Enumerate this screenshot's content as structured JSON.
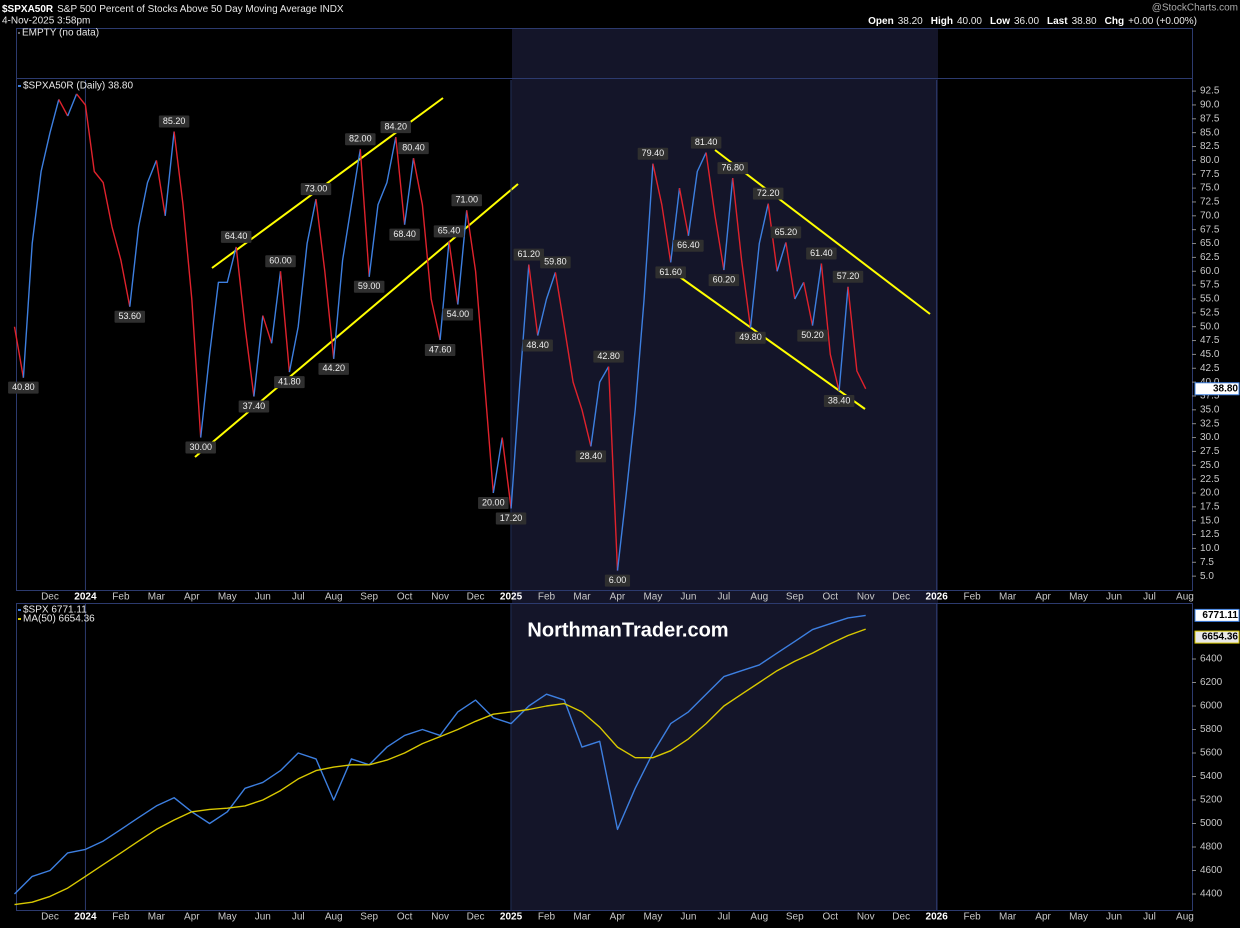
{
  "header": {
    "symbol": "$SPXA50R",
    "description": "S&P 500 Percent of Stocks Above 50 Day Moving Average INDX",
    "timestamp": "4-Nov-2025 3:58pm",
    "credit": "@StockCharts.com",
    "quote": [
      {
        "label": "Open",
        "value": "38.20"
      },
      {
        "label": "High",
        "value": "40.00"
      },
      {
        "label": "Low",
        "value": "36.00"
      },
      {
        "label": "Last",
        "value": "38.80"
      },
      {
        "label": "Chg",
        "value": "+0.00 (+0.00%)"
      }
    ],
    "empty_panel": "EMPTY (no data)",
    "watermark": "NorthmanTrader.com"
  },
  "chart_data": [
    {
      "type": "line",
      "ylim": [
        2.5,
        94.5
      ],
      "yticks": [
        92.5,
        {
          "value": 90,
          "label": "90.0"
        },
        87.5,
        {
          "value": 85,
          "label": "85.0"
        },
        82.5,
        {
          "value": 80,
          "label": "80.0"
        },
        77.5,
        {
          "value": 75,
          "label": "75.0"
        },
        72.5,
        {
          "value": 70,
          "label": "70.0"
        },
        67.5,
        {
          "value": 65,
          "label": "65.0"
        },
        62.5,
        {
          "value": 60,
          "label": "60.0"
        },
        57.5,
        {
          "value": 55,
          "label": "55.0"
        },
        52.5,
        {
          "value": 50,
          "label": "50.0"
        },
        47.5,
        {
          "value": 45,
          "label": "45.0"
        },
        42.5,
        {
          "value": 40,
          "label": "40.0"
        },
        37.5,
        {
          "value": 35,
          "label": "35.0"
        },
        32.5,
        {
          "value": 30,
          "label": "30.0"
        },
        27.5,
        {
          "value": 25,
          "label": "25.0"
        },
        22.5,
        {
          "value": 20,
          "label": "20.0"
        },
        17.5,
        {
          "value": 15,
          "label": "15.0"
        },
        12.5,
        {
          "value": 10,
          "label": "10.0"
        },
        7.5,
        {
          "value": 5,
          "label": "5.0"
        }
      ],
      "categories": [
        null,
        null,
        null,
        null,
        "Dec",
        null,
        null,
        null,
        "2024",
        null,
        null,
        null,
        "Feb",
        null,
        null,
        null,
        "Mar",
        null,
        null,
        null,
        "Apr",
        null,
        null,
        null,
        "May",
        null,
        null,
        null,
        "Jun",
        null,
        null,
        null,
        "Jul",
        null,
        null,
        null,
        "Aug",
        null,
        null,
        null,
        "Sep",
        null,
        null,
        null,
        "Oct",
        null,
        null,
        null,
        "Nov",
        null,
        null,
        null,
        "Dec",
        null,
        null,
        null,
        "2025",
        null,
        null,
        null,
        "Feb",
        null,
        null,
        null,
        "Mar",
        null,
        null,
        null,
        "Apr",
        null,
        null,
        null,
        "May",
        null,
        null,
        null,
        "Jun",
        null,
        null,
        null,
        "Jul",
        null,
        null,
        null,
        "Aug",
        null,
        null,
        null,
        "Sep",
        null,
        null,
        null,
        "Oct",
        null,
        null,
        null,
        "Nov",
        null,
        null,
        null,
        "Dec",
        null,
        null,
        null,
        "2026",
        null,
        null,
        null,
        "Feb",
        null,
        null,
        null,
        "Mar",
        null,
        null,
        null,
        "Apr",
        null,
        null,
        null,
        "May",
        null,
        null,
        null,
        "Jun",
        null,
        null,
        null,
        "Jul",
        null,
        null,
        null,
        "Aug",
        null,
        null,
        null
      ],
      "series": [
        {
          "name": "$SPXA50R (Daily) 38.80",
          "color": "#3d7fe0",
          "down_color": "#e0222c",
          "values": [
            50,
            40.8,
            65,
            78,
            85,
            91,
            88,
            92,
            90,
            78,
            76,
            68,
            62,
            53.6,
            68,
            76,
            80,
            70,
            85.2,
            72,
            55,
            30,
            45,
            58,
            58,
            64.4,
            50,
            37.4,
            52,
            47,
            60,
            41.8,
            50,
            65,
            73,
            60,
            44.2,
            62,
            72,
            82,
            59,
            72,
            76,
            84.2,
            68.4,
            80.4,
            72,
            55,
            47.6,
            65.4,
            54,
            71,
            60,
            40,
            20,
            30,
            17.2,
            40,
            61.2,
            48.4,
            55,
            59.8,
            50,
            40,
            35,
            28.4,
            40,
            42.8,
            6,
            20,
            35,
            55,
            79.4,
            72,
            61.6,
            75,
            66.4,
            78,
            81.4,
            70,
            60.2,
            76.8,
            62,
            49.8,
            65,
            72.2,
            60,
            65.2,
            55,
            58,
            50.2,
            61.4,
            45,
            38.4,
            57.2,
            42,
            38.8,
            null,
            null,
            null,
            null,
            null,
            null,
            null,
            null,
            null,
            null,
            null,
            null,
            null,
            null,
            null,
            null,
            null,
            null,
            null,
            null,
            null,
            null,
            null,
            null,
            null,
            null,
            null,
            null,
            null,
            null,
            null,
            null,
            null,
            null,
            null,
            null,
            null,
            null,
            null
          ],
          "value_labels": [
            null,
            "40.80",
            null,
            null,
            null,
            null,
            null,
            null,
            null,
            null,
            null,
            null,
            null,
            "53.60",
            null,
            null,
            null,
            null,
            "85.20",
            null,
            null,
            "30.00",
            null,
            null,
            null,
            "64.40",
            null,
            "37.40",
            null,
            null,
            "60.00",
            "41.80",
            null,
            null,
            "73.00",
            null,
            "44.20",
            null,
            null,
            "82.00",
            "59.00",
            null,
            null,
            "84.20",
            "68.40",
            "80.40",
            null,
            null,
            "47.60",
            "65.40",
            "54.00",
            "71.00",
            null,
            null,
            "20.00",
            null,
            "17.20",
            null,
            "61.20",
            "48.40",
            null,
            "59.80",
            null,
            null,
            null,
            "28.40",
            null,
            "42.80",
            "6.00",
            null,
            null,
            null,
            "79.40",
            null,
            "61.60",
            null,
            "66.40",
            null,
            "81.40",
            null,
            "60.20",
            "76.80",
            null,
            "49.80",
            null,
            "72.20",
            null,
            "65.20",
            null,
            null,
            "50.20",
            "61.40",
            null,
            "38.40",
            "57.20",
            null,
            "38.80",
            null,
            null,
            null,
            null,
            null,
            null,
            null,
            null,
            null,
            null,
            null,
            null,
            null,
            null,
            null,
            null,
            null,
            null,
            null,
            null,
            null,
            null,
            null,
            null,
            null,
            null,
            null,
            null,
            null,
            null,
            null,
            null,
            null,
            null,
            null,
            null,
            null,
            null,
            null
          ]
        }
      ]
    },
    {
      "type": "line",
      "ylim": [
        4264,
        6868
      ],
      "yticks": [
        6400,
        6200,
        6000,
        5800,
        5600,
        5400,
        5200,
        5000,
        4800,
        4600,
        4400
      ],
      "categories": [
        null,
        null,
        "Dec",
        null,
        "2024",
        null,
        "Feb",
        null,
        "Mar",
        null,
        "Apr",
        null,
        "May",
        null,
        "Jun",
        null,
        "Jul",
        null,
        "Aug",
        null,
        "Sep",
        null,
        "Oct",
        null,
        "Nov",
        null,
        "Dec",
        null,
        "2025",
        null,
        "Feb",
        null,
        "Mar",
        null,
        "Apr",
        null,
        "May",
        null,
        "Jun",
        null,
        "Jul",
        null,
        "Aug",
        null,
        "Sep",
        null,
        "Oct",
        null,
        "Nov",
        null,
        "Dec",
        null,
        "2026",
        null,
        "Feb",
        null,
        "Mar",
        null,
        "Apr",
        null,
        "May",
        null,
        "Jun",
        null,
        "Jul",
        null,
        "Aug",
        null
      ],
      "series": [
        {
          "name": "$SPX 6771.11",
          "color": "#3d7fe0",
          "values": [
            4400,
            4550,
            4600,
            4750,
            4780,
            4850,
            4950,
            5050,
            5150,
            5220,
            5100,
            5000,
            5100,
            5300,
            5350,
            5450,
            5600,
            5550,
            5200,
            5550,
            5500,
            5650,
            5750,
            5800,
            5750,
            5950,
            6050,
            5900,
            5850,
            6000,
            6100,
            6050,
            5650,
            5700,
            4950,
            5300,
            5600,
            5850,
            5950,
            6100,
            6250,
            6300,
            6350,
            6450,
            6550,
            6650,
            6700,
            6750,
            6771.11,
            null,
            null,
            null,
            null,
            null,
            null,
            null,
            null,
            null,
            null,
            null,
            null,
            null,
            null,
            null,
            null,
            null,
            null,
            null
          ]
        },
        {
          "name": "MA(50) 6654.36",
          "color": "#d8c800",
          "values": [
            4310,
            4330,
            4380,
            4450,
            4550,
            4650,
            4750,
            4850,
            4950,
            5030,
            5100,
            5120,
            5130,
            5150,
            5200,
            5280,
            5380,
            5450,
            5480,
            5500,
            5500,
            5540,
            5600,
            5680,
            5740,
            5800,
            5870,
            5930,
            5950,
            5970,
            6000,
            6020,
            5950,
            5820,
            5650,
            5560,
            5560,
            5620,
            5720,
            5850,
            6000,
            6100,
            6200,
            6300,
            6380,
            6450,
            6530,
            6600,
            6654.36,
            null,
            null,
            null,
            null,
            null,
            null,
            null,
            null,
            null,
            null,
            null,
            null,
            null,
            null,
            null,
            null,
            null,
            null,
            null
          ]
        }
      ]
    }
  ]
}
